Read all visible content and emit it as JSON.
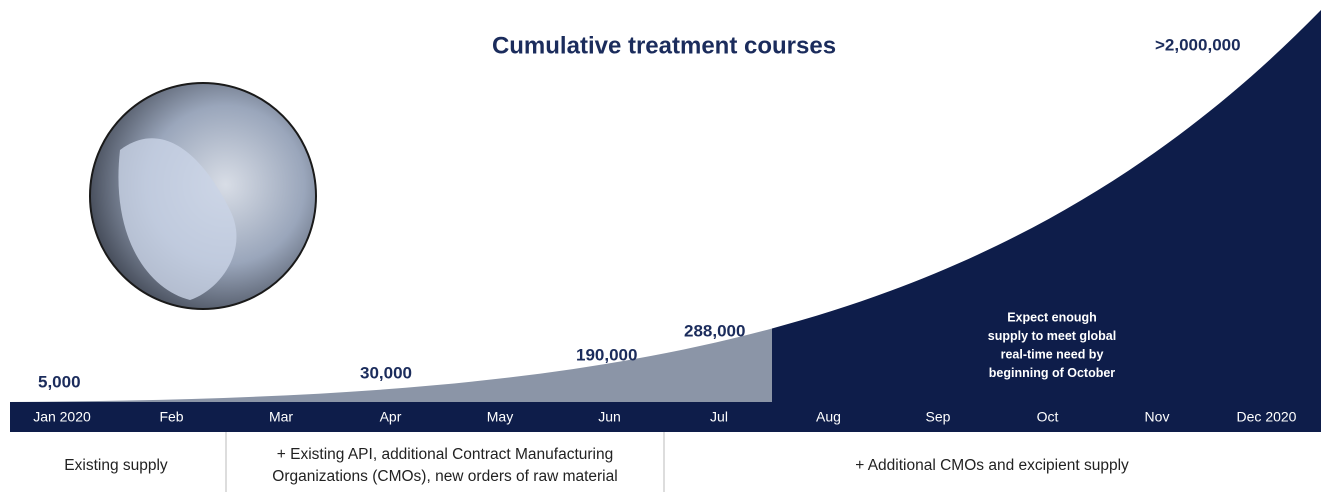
{
  "title": "Cumulative treatment courses",
  "months": [
    "Jan 2020",
    "Feb",
    "Mar",
    "Apr",
    "May",
    "Jun",
    "Jul",
    "Aug",
    "Sep",
    "Oct",
    "Nov",
    "Dec 2020"
  ],
  "annotations": [
    "5,000",
    "30,000",
    "190,000",
    "288,000",
    ">2,000,000"
  ],
  "note": [
    "Expect enough",
    "supply to meet global",
    "real-time need by",
    "beginning of October"
  ],
  "supply_phases": [
    [
      "Existing supply"
    ],
    [
      "+ Existing API, additional Contract Manufacturing",
      "Organizations (CMOs), new orders of raw material"
    ],
    [
      "+ Additional CMOs and excipient supply"
    ]
  ]
}
